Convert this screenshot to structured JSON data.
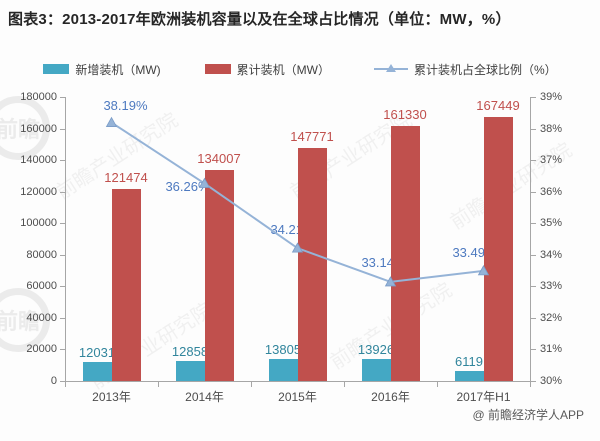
{
  "page": {
    "title": "图表3：2013-2017年欧洲装机容量以及在全球占比情况（单位：MW，%）",
    "footer": "@ 前瞻经济学人APP"
  },
  "watermark": {
    "brand": "前瞻产业研究院",
    "logo": "前瞻"
  },
  "legend": {
    "items": [
      {
        "label": "新增装机（MW)",
        "type": "bar",
        "color": "#44a8c4"
      },
      {
        "label": "累计装机（MW）",
        "type": "bar",
        "color": "#c0504d"
      },
      {
        "label": "累计装机占全球比例（%）",
        "type": "line",
        "color": "#95b3d7"
      }
    ]
  },
  "colors": {
    "new_bar": "#44a8c4",
    "cum_bar": "#c0504d",
    "line": "#95b3d7",
    "marker_stroke": "#7a9cc8",
    "new_label": "#31859c",
    "cum_label": "#c0504d",
    "pct_label": "#4e7ac0"
  },
  "chart_data": {
    "type": "bar+line combo",
    "title": "图表3：2013-2017年欧洲装机容量以及在全球占比情况（单位：MW，%）",
    "categories": [
      "2013年",
      "2014年",
      "2015年",
      "2016年",
      "2017年H1"
    ],
    "series": [
      {
        "name": "新增装机（MW)",
        "type": "bar",
        "axis": "left",
        "values": [
          12031,
          12858,
          13805,
          13926,
          6119
        ],
        "labels": [
          "12031",
          "12858",
          "13805",
          "13926",
          "6119"
        ]
      },
      {
        "name": "累计装机（MW）",
        "type": "bar",
        "axis": "left",
        "values": [
          121474,
          134007,
          147771,
          161330,
          167449
        ],
        "labels": [
          "121474",
          "134007",
          "147771",
          "161330",
          "167449"
        ]
      },
      {
        "name": "累计装机占全球比例（%）",
        "type": "line",
        "axis": "right",
        "values": [
          38.19,
          36.26,
          34.21,
          33.14,
          33.49
        ],
        "labels": [
          "38.19%",
          "36.26%",
          "34.21%",
          "33.14%",
          "33.49%"
        ]
      }
    ],
    "left_axis": {
      "min": 0,
      "max": 180000,
      "step": 20000,
      "ticks": [
        "0",
        "20000",
        "40000",
        "60000",
        "80000",
        "100000",
        "120000",
        "140000",
        "160000",
        "180000"
      ]
    },
    "right_axis": {
      "min": 30,
      "max": 39,
      "step": 1,
      "ticks": [
        "30%",
        "31%",
        "32%",
        "33%",
        "34%",
        "35%",
        "36%",
        "37%",
        "38%",
        "39%"
      ]
    },
    "grid": false,
    "legend_position": "top"
  }
}
